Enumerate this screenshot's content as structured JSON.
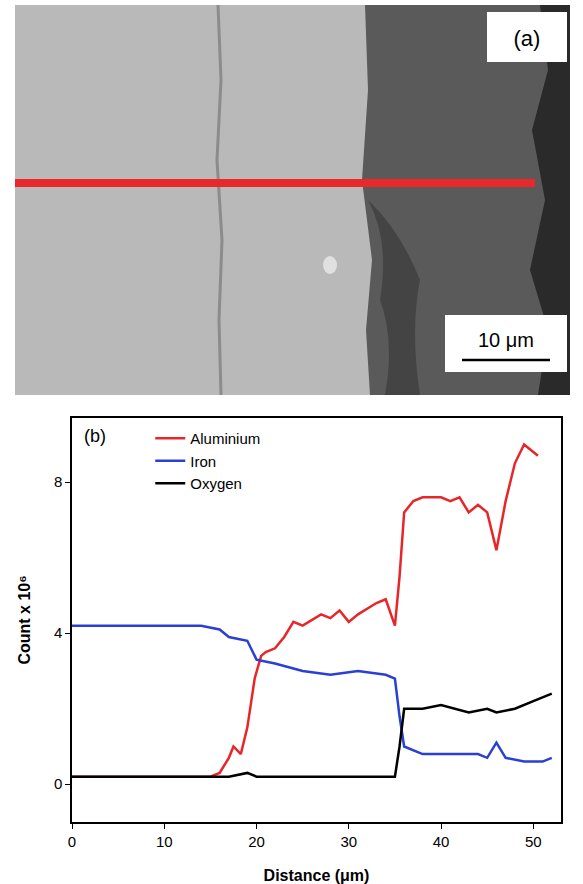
{
  "micrograph": {
    "label": "(a)",
    "scale_bar": "10 μm"
  },
  "chart_data": {
    "type": "line",
    "panel_label": "(b)",
    "x_label": "Distance (μm)",
    "y_label": "Count x 10⁶",
    "xlim": [
      0,
      53
    ],
    "xticks": [
      0,
      10,
      20,
      30,
      40,
      50
    ],
    "ylim": [
      -1,
      9.7
    ],
    "yticks": [
      0,
      4,
      8
    ],
    "grid": false,
    "legend": "upper left",
    "series": [
      {
        "name": "Aluminium",
        "color": "#e8262a",
        "x": [
          0,
          5,
          10,
          15,
          16,
          17,
          17.5,
          18.3,
          19,
          19.8,
          20.5,
          21,
          22,
          23,
          24,
          25,
          27,
          28,
          29,
          30,
          31,
          33,
          34,
          35,
          35.5,
          36,
          37,
          38,
          40,
          41,
          42,
          43,
          44,
          45,
          46,
          47,
          48,
          49,
          50,
          50.5
        ],
        "values": [
          0.2,
          0.2,
          0.2,
          0.2,
          0.3,
          0.7,
          1.0,
          0.8,
          1.5,
          2.8,
          3.4,
          3.5,
          3.6,
          3.9,
          4.3,
          4.2,
          4.5,
          4.4,
          4.6,
          4.3,
          4.5,
          4.8,
          4.9,
          4.2,
          5.5,
          7.2,
          7.5,
          7.6,
          7.6,
          7.5,
          7.6,
          7.2,
          7.4,
          7.2,
          6.2,
          7.5,
          8.5,
          9.0,
          8.8,
          8.7
        ]
      },
      {
        "name": "Iron",
        "color": "#2a3fd4",
        "x": [
          0,
          5,
          10,
          14,
          16,
          17,
          19,
          20,
          22,
          25,
          28,
          31,
          34,
          35,
          35.5,
          36,
          38,
          44,
          45,
          46,
          47,
          49,
          51,
          52
        ],
        "values": [
          4.2,
          4.2,
          4.2,
          4.2,
          4.1,
          3.9,
          3.8,
          3.3,
          3.2,
          3.0,
          2.9,
          3.0,
          2.9,
          2.8,
          1.8,
          1.0,
          0.8,
          0.8,
          0.7,
          1.1,
          0.7,
          0.6,
          0.6,
          0.7
        ]
      },
      {
        "name": "Oxygen",
        "color": "#000000",
        "x": [
          0,
          5,
          10,
          17,
          19,
          20,
          25,
          30,
          35,
          35.5,
          36,
          38,
          40,
          43,
          45,
          46,
          48,
          50,
          52
        ],
        "values": [
          0.2,
          0.2,
          0.2,
          0.2,
          0.3,
          0.2,
          0.2,
          0.2,
          0.2,
          1.0,
          2.0,
          2.0,
          2.1,
          1.9,
          2.0,
          1.9,
          2.0,
          2.2,
          2.4
        ]
      }
    ]
  }
}
